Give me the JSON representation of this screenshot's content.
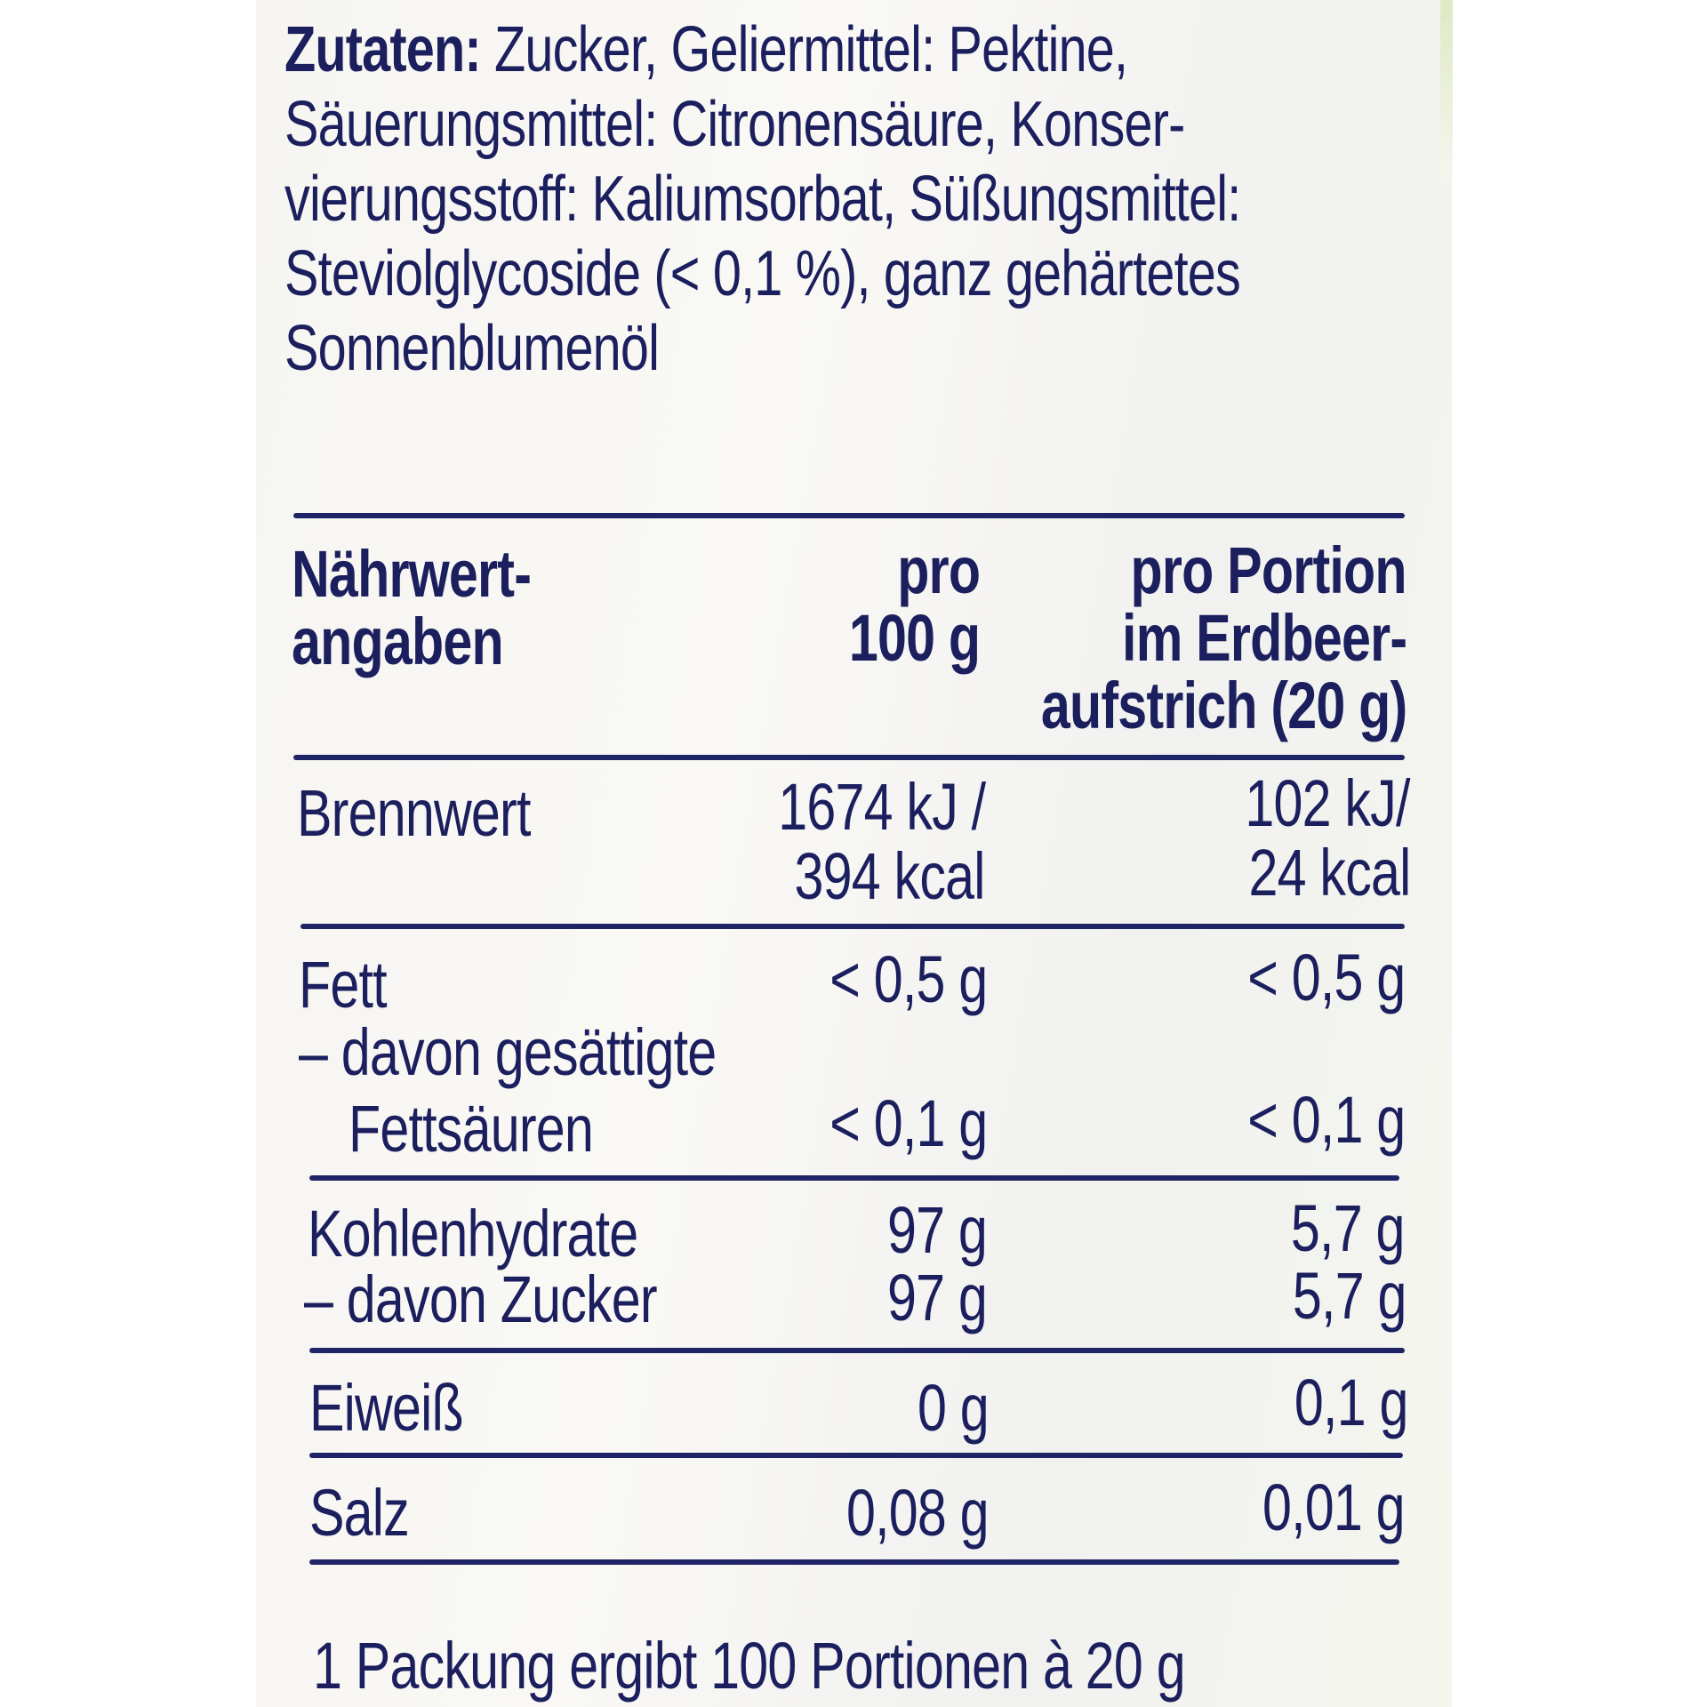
{
  "ingredients": {
    "label": "Zutaten:",
    "lines": [
      " Zucker, Geliermittel: Pektine,",
      "Säuerungsmittel: Citronensäure, Konser-",
      "vierungsstoff: Kaliumsorbat, Süßungsmittel:",
      "Steviolglycoside (< 0,1 %), ganz gehärtetes",
      "Sonnenblumenöl"
    ]
  },
  "table": {
    "header": {
      "col1": [
        "Nährwert-",
        "angaben"
      ],
      "col2": [
        "pro",
        "100 g"
      ],
      "col3": [
        "pro Portion",
        "im Erdbeer-",
        "aufstrich (20 g)"
      ]
    },
    "rows": {
      "brennwert": {
        "label": "Brennwert",
        "per100": [
          "1674 kJ /",
          "394 kcal"
        ],
        "portion": [
          "102 kJ/",
          "24 kcal"
        ]
      },
      "fett": {
        "label": "Fett",
        "per100": "< 0,5 g",
        "portion": "< 0,5 g"
      },
      "gesaettigte": {
        "label1": "– davon gesättigte",
        "label2": "Fettsäuren",
        "per100": "< 0,1 g",
        "portion": "< 0,1 g"
      },
      "kohlenhydrate": {
        "label": "Kohlenhydrate",
        "per100": "97 g",
        "portion": "5,7 g"
      },
      "zucker": {
        "label": "– davon Zucker",
        "per100": "97 g",
        "portion": "5,7 g"
      },
      "eiweiss": {
        "label": "Eiweiß",
        "per100": "0 g",
        "portion": "0,1 g"
      },
      "salz": {
        "label": "Salz",
        "per100": "0,08 g",
        "portion": "0,01 g"
      }
    }
  },
  "footer": "1 Packung ergibt 100 Portionen à 20 g",
  "colors": {
    "ink": "#1c1f5e",
    "background": "#f6f5f2"
  }
}
